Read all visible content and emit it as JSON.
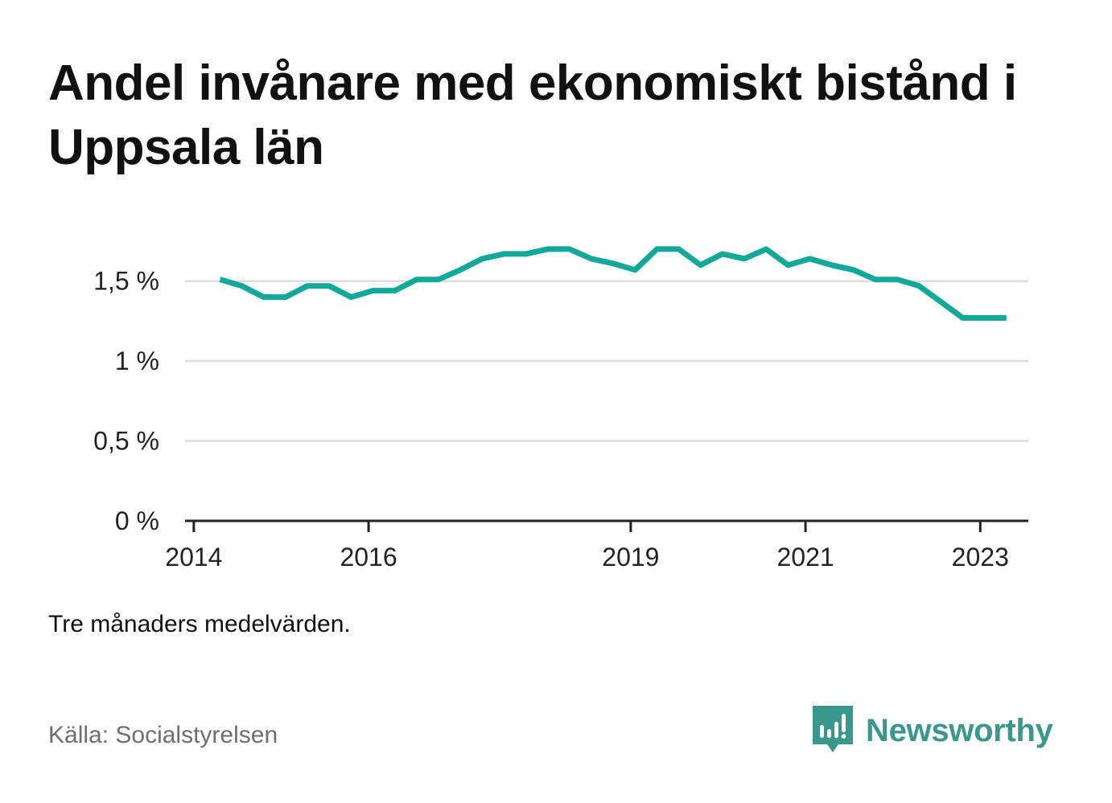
{
  "title": "Andel invånare med ekonomiskt bistånd i Uppsala län",
  "note": "Tre månaders medelvärden.",
  "source": "Källa: Socialstyrelsen",
  "brand": {
    "name": "Newsworthy",
    "icon": "newsworthy-logo-icon"
  },
  "colors": {
    "line": "#12a89a",
    "grid": "#dddddd",
    "axis": "#222222",
    "brand": "#3a978c"
  },
  "chart_data": {
    "type": "line",
    "title": "Andel invånare med ekonomiskt bistånd i Uppsala län",
    "xlabel": "",
    "ylabel": "",
    "y_ticks": [
      {
        "value": 0,
        "label": "0 %"
      },
      {
        "value": 0.5,
        "label": "0,5 %"
      },
      {
        "value": 1,
        "label": "1 %"
      },
      {
        "value": 1.5,
        "label": "1,5 %"
      }
    ],
    "x_ticks": [
      {
        "value": 2014.0,
        "label": "2014"
      },
      {
        "value": 2016.0,
        "label": "2016"
      },
      {
        "value": 2019.0,
        "label": "2019"
      },
      {
        "value": 2021.0,
        "label": "2021"
      },
      {
        "value": 2023.0,
        "label": "2023"
      }
    ],
    "xlim": [
      2013.9,
      2023.55
    ],
    "ylim": [
      0,
      1.75
    ],
    "grid": true,
    "legend": "none",
    "series": [
      {
        "x": [
          2014.3,
          2014.55,
          2014.8,
          2015.05,
          2015.3,
          2015.55,
          2015.8,
          2016.05,
          2016.3,
          2016.55,
          2016.8,
          2017.05,
          2017.3,
          2017.55,
          2017.8,
          2018.05,
          2018.3,
          2018.55,
          2018.8,
          2019.05,
          2019.3,
          2019.55,
          2019.8,
          2020.05,
          2020.3,
          2020.55,
          2020.8,
          2021.05,
          2021.3,
          2021.55,
          2021.8,
          2022.05,
          2022.3,
          2022.55,
          2022.8,
          2023.05,
          2023.3
        ],
        "values": [
          1.51,
          1.47,
          1.4,
          1.4,
          1.47,
          1.47,
          1.4,
          1.44,
          1.44,
          1.51,
          1.51,
          1.57,
          1.64,
          1.67,
          1.67,
          1.7,
          1.7,
          1.64,
          1.61,
          1.57,
          1.7,
          1.7,
          1.6,
          1.67,
          1.64,
          1.7,
          1.6,
          1.64,
          1.6,
          1.57,
          1.51,
          1.51,
          1.47,
          1.37,
          1.27,
          1.27,
          1.27
        ]
      }
    ]
  }
}
